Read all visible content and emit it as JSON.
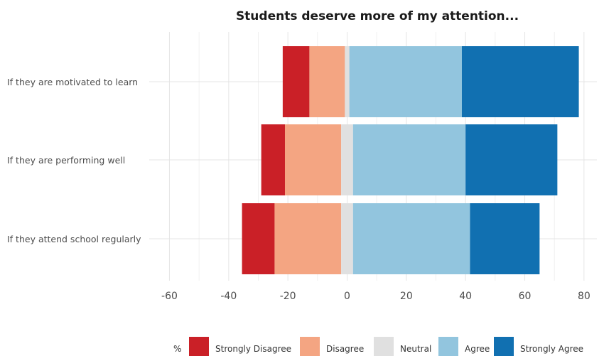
{
  "chart_data": {
    "type": "bar",
    "orientation": "horizontal",
    "stacked": "diverging",
    "title": "Students deserve more of my attention...",
    "categories": [
      "If they are motivated to learn",
      "If they are performing well",
      "If they attend school regularly"
    ],
    "xlim": [
      -65,
      82
    ],
    "xticks": [
      -60,
      -40,
      -20,
      0,
      20,
      40,
      60,
      80
    ],
    "xtick_labels": [
      "-60",
      "-40",
      "-20",
      "0",
      "20",
      "40",
      "60",
      "80"
    ],
    "grid": true,
    "legend_title": "%",
    "legend_position": "bottom",
    "series": [
      {
        "name": "Strongly Disagree",
        "color": "#ca2027",
        "values": [
          -9,
          -8,
          -11
        ]
      },
      {
        "name": "Disagree",
        "color": "#f4a582",
        "values": [
          -12,
          -19,
          -22.5
        ]
      },
      {
        "name": "Neutral",
        "color": "#e0e0e0",
        "values": [
          1.5,
          4,
          4
        ]
      },
      {
        "name": "Agree",
        "color": "#92c5de",
        "values": [
          38,
          38,
          39.5
        ]
      },
      {
        "name": "Strongly Agree",
        "color": "#1170b1",
        "values": [
          39.5,
          31,
          23.5
        ]
      }
    ]
  }
}
